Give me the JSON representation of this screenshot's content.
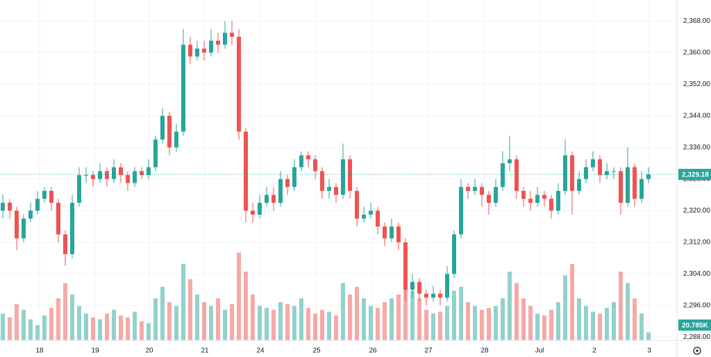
{
  "chart_data": {
    "type": "candlestick",
    "open": [
      2320,
      2322,
      2320,
      2313,
      2318,
      2320,
      2323,
      2325,
      2322,
      2314,
      2309,
      2322,
      2329,
      2329,
      2328,
      2330,
      2328,
      2331,
      2329,
      2327,
      2330,
      2329,
      2331,
      2338,
      2344,
      2336,
      2340,
      2362,
      2359,
      2361,
      2360,
      2363,
      2362,
      2365,
      2364,
      2340,
      2320,
      2319,
      2322,
      2324,
      2322,
      2328,
      2326,
      2331,
      2334,
      2333,
      2330,
      2325,
      2326,
      2324,
      2333,
      2325,
      2318,
      2319,
      2320,
      2316,
      2313,
      2316,
      2312,
      2300,
      2302,
      2299,
      2298,
      2299,
      2298,
      2304,
      2314,
      2326,
      2325,
      2326,
      2324,
      2322,
      2326,
      2332,
      2333,
      2325,
      2323,
      2322,
      2324,
      2323,
      2320,
      2325,
      2334,
      2325,
      2328,
      2331,
      2333,
      2329,
      2330,
      2330,
      2322,
      2331,
      2323,
      2328
    ],
    "high": [
      2324,
      2323,
      2321,
      2319,
      2322,
      2325,
      2326,
      2326,
      2323,
      2315,
      2324,
      2331,
      2331,
      2330,
      2332,
      2331,
      2333,
      2332,
      2330,
      2331,
      2331,
      2333,
      2339,
      2346,
      2345,
      2342,
      2366,
      2364,
      2363,
      2363,
      2366,
      2365,
      2368,
      2368,
      2366,
      2341,
      2322,
      2324,
      2326,
      2326,
      2330,
      2329,
      2333,
      2335,
      2335,
      2334,
      2331,
      2328,
      2327,
      2337,
      2334,
      2326,
      2321,
      2322,
      2321,
      2317,
      2318,
      2317,
      2313,
      2304,
      2303,
      2300,
      2301,
      2300,
      2306,
      2315,
      2328,
      2327,
      2328,
      2327,
      2325,
      2328,
      2335,
      2339,
      2334,
      2326,
      2325,
      2326,
      2325,
      2324,
      2327,
      2338,
      2335,
      2330,
      2333,
      2335,
      2334,
      2332,
      2331,
      2331,
      2336,
      2332,
      2330,
      2331
    ],
    "low": [
      2318,
      2318,
      2310,
      2312,
      2317,
      2319,
      2322,
      2320,
      2312,
      2306,
      2308,
      2321,
      2327,
      2326,
      2327,
      2326,
      2327,
      2327,
      2325,
      2326,
      2328,
      2328,
      2330,
      2337,
      2334,
      2335,
      2339,
      2357,
      2358,
      2358,
      2359,
      2360,
      2361,
      2362,
      2338,
      2317,
      2317,
      2318,
      2321,
      2320,
      2321,
      2324,
      2325,
      2330,
      2331,
      2328,
      2323,
      2323,
      2322,
      2323,
      2323,
      2316,
      2317,
      2318,
      2314,
      2311,
      2312,
      2310,
      2297,
      2298,
      2297,
      2296,
      2297,
      2296,
      2297,
      2303,
      2313,
      2323,
      2324,
      2321,
      2319,
      2321,
      2325,
      2330,
      2323,
      2321,
      2320,
      2321,
      2321,
      2318,
      2319,
      2324,
      2319,
      2324,
      2327,
      2330,
      2327,
      2328,
      2328,
      2319,
      2321,
      2321,
      2322,
      2327
    ],
    "close": [
      2322,
      2320,
      2313,
      2318,
      2320,
      2323,
      2325,
      2322,
      2314,
      2309,
      2322,
      2329,
      2329,
      2328,
      2330,
      2328,
      2331,
      2329,
      2327,
      2330,
      2329,
      2331,
      2338,
      2344,
      2336,
      2340,
      2362,
      2359,
      2361,
      2360,
      2363,
      2362,
      2365,
      2364,
      2340,
      2320,
      2319,
      2322,
      2324,
      2322,
      2328,
      2326,
      2331,
      2334,
      2333,
      2330,
      2325,
      2326,
      2324,
      2333,
      2325,
      2318,
      2319,
      2320,
      2316,
      2313,
      2316,
      2312,
      2300,
      2302,
      2299,
      2298,
      2299,
      2298,
      2304,
      2314,
      2326,
      2325,
      2326,
      2324,
      2322,
      2326,
      2332,
      2333,
      2325,
      2323,
      2322,
      2324,
      2323,
      2320,
      2325,
      2334,
      2325,
      2328,
      2331,
      2333,
      2329,
      2330,
      2330,
      2322,
      2331,
      2323,
      2328,
      2329.18
    ],
    "volume": [
      70,
      60,
      95,
      80,
      55,
      40,
      65,
      85,
      110,
      150,
      120,
      90,
      70,
      60,
      55,
      70,
      80,
      65,
      60,
      75,
      50,
      45,
      110,
      140,
      100,
      90,
      200,
      160,
      120,
      100,
      90,
      110,
      80,
      95,
      230,
      180,
      120,
      90,
      85,
      80,
      100,
      95,
      90,
      110,
      85,
      70,
      80,
      75,
      65,
      150,
      120,
      140,
      110,
      90,
      85,
      100,
      110,
      120,
      160,
      130,
      110,
      80,
      70,
      75,
      90,
      130,
      140,
      100,
      90,
      80,
      85,
      90,
      110,
      180,
      150,
      110,
      90,
      70,
      65,
      80,
      100,
      170,
      200,
      110,
      90,
      75,
      70,
      85,
      100,
      180,
      150,
      110,
      70,
      20.785
    ],
    "up_color": "#26a69a",
    "down_color": "#ef5350",
    "ylim": [
      2287.2,
      2373.3
    ],
    "yticks": [
      {
        "value": 2288,
        "label": "2,288.00"
      },
      {
        "value": 2296,
        "label": "2,296.00"
      },
      {
        "value": 2304,
        "label": "2,304.00"
      },
      {
        "value": 2312,
        "label": "2,312.00"
      },
      {
        "value": 2320,
        "label": "2,320.00"
      },
      {
        "value": 2328,
        "label": "2,328.00"
      },
      {
        "value": 2336,
        "label": "2,336.00"
      },
      {
        "value": 2344,
        "label": "2,344.00"
      },
      {
        "value": 2352,
        "label": "2,352.00"
      },
      {
        "value": 2360,
        "label": "2,360.00"
      },
      {
        "value": 2368,
        "label": "2,368.00"
      }
    ],
    "vlim": [
      0,
      400
    ],
    "xlim": [
      -0.4,
      97.1
    ],
    "xticks": [
      {
        "value": 5.3,
        "label": "18"
      },
      {
        "value": 13.3,
        "label": "19"
      },
      {
        "value": 21.1,
        "label": "20"
      },
      {
        "value": 29.1,
        "label": "21"
      },
      {
        "value": 37.1,
        "label": "24"
      },
      {
        "value": 45.2,
        "label": "25"
      },
      {
        "value": 53.3,
        "label": "26"
      },
      {
        "value": 61.3,
        "label": "27"
      },
      {
        "value": 69.4,
        "label": "28"
      },
      {
        "value": 77.3,
        "label": "Jul"
      },
      {
        "value": 85.2,
        "label": "2"
      },
      {
        "value": 93.1,
        "label": "3"
      }
    ],
    "last_price": {
      "value": 2329.18,
      "label": "2,329.18"
    },
    "last_volume": {
      "value": 20.785,
      "label": "20.785K"
    },
    "grid": true
  }
}
